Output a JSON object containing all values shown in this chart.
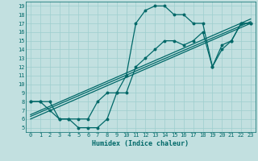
{
  "xlabel": "Humidex (Indice chaleur)",
  "xlim": [
    -0.5,
    23.5
  ],
  "ylim": [
    4.5,
    19.5
  ],
  "xticks": [
    0,
    1,
    2,
    3,
    4,
    5,
    6,
    7,
    8,
    9,
    10,
    11,
    12,
    13,
    14,
    15,
    16,
    17,
    18,
    19,
    20,
    21,
    22,
    23
  ],
  "yticks": [
    5,
    6,
    7,
    8,
    9,
    10,
    11,
    12,
    13,
    14,
    15,
    16,
    17,
    18,
    19
  ],
  "background_color": "#c2e0e0",
  "grid_color": "#9ecece",
  "line_color": "#006868",
  "curve1_x": [
    0,
    1,
    2,
    3,
    4,
    5,
    6,
    7,
    8,
    9,
    10,
    11,
    12,
    13,
    14,
    15,
    16,
    17,
    18,
    19,
    20,
    21,
    22,
    23
  ],
  "curve1_y": [
    8,
    8,
    7,
    6,
    6,
    5,
    5,
    5,
    6,
    9,
    11,
    17,
    18.5,
    19,
    19,
    18,
    18,
    17,
    17,
    12,
    14,
    15,
    17,
    17
  ],
  "curve2_x": [
    0,
    1,
    2,
    3,
    4,
    5,
    6,
    7,
    8,
    9,
    10,
    11,
    12,
    13,
    14,
    15,
    16,
    17,
    18,
    19,
    20,
    21,
    22,
    23
  ],
  "curve2_y": [
    8,
    8,
    8,
    6,
    6,
    6,
    6,
    8,
    9,
    9,
    9,
    12,
    13,
    14,
    15,
    15,
    14.5,
    15,
    16,
    12,
    14.5,
    15,
    17,
    17
  ],
  "line1_x": [
    0,
    23
  ],
  "line1_y": [
    6.5,
    17.5
  ],
  "line2_x": [
    0,
    23
  ],
  "line2_y": [
    6.3,
    17.2
  ],
  "line3_x": [
    0,
    23
  ],
  "line3_y": [
    6.0,
    17.0
  ],
  "marker_size": 1.8,
  "linewidth": 0.9,
  "tick_fontsize": 5.0,
  "label_fontsize": 6.0
}
